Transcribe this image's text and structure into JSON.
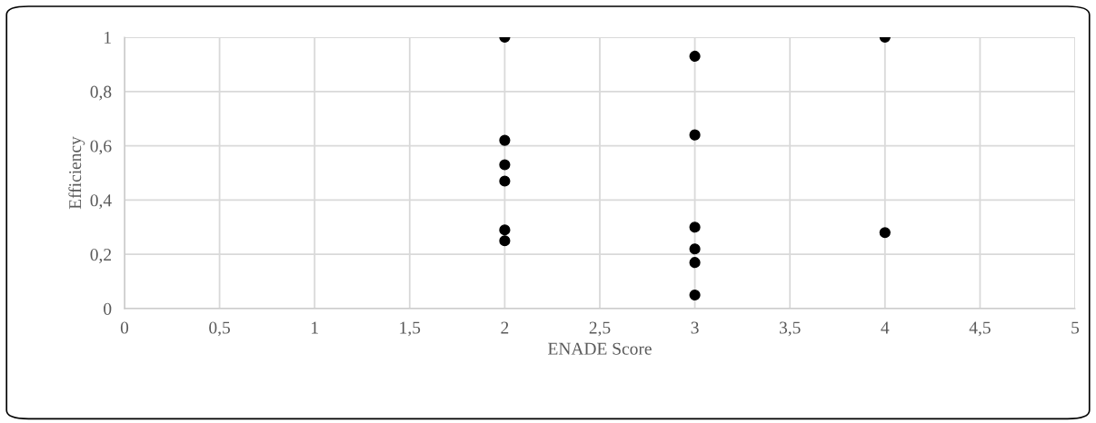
{
  "chart_data": {
    "type": "scatter",
    "xlabel": "ENADE Score",
    "ylabel": "Efficiency",
    "x": [
      2,
      2,
      2,
      2,
      2,
      2,
      3,
      3,
      3,
      3,
      3,
      3,
      4,
      4
    ],
    "series": [
      {
        "color": "#000000",
        "values": [
          1.0,
          0.62,
          0.53,
          0.47,
          0.29,
          0.25,
          0.93,
          0.64,
          0.3,
          0.22,
          0.17,
          0.05,
          1.0,
          0.28
        ]
      }
    ],
    "marker": "circle",
    "grid": true,
    "xlim": [
      0,
      5
    ],
    "ylim": [
      0,
      1
    ],
    "xticks": [
      0,
      {
        "value": 0.5,
        "label": "0,5"
      },
      1,
      {
        "value": 1.5,
        "label": "1,5"
      },
      2,
      {
        "value": 2.5,
        "label": "2,5"
      },
      3,
      {
        "value": 3.5,
        "label": "3,5"
      },
      4,
      {
        "value": 4.5,
        "label": "4,5"
      },
      5
    ],
    "yticks": [
      0,
      {
        "value": 0.2,
        "label": "0,2"
      },
      {
        "value": 0.4,
        "label": "0,4"
      },
      {
        "value": 0.6,
        "label": "0,6"
      },
      {
        "value": 0.8,
        "label": "0,8"
      },
      1
    ]
  }
}
